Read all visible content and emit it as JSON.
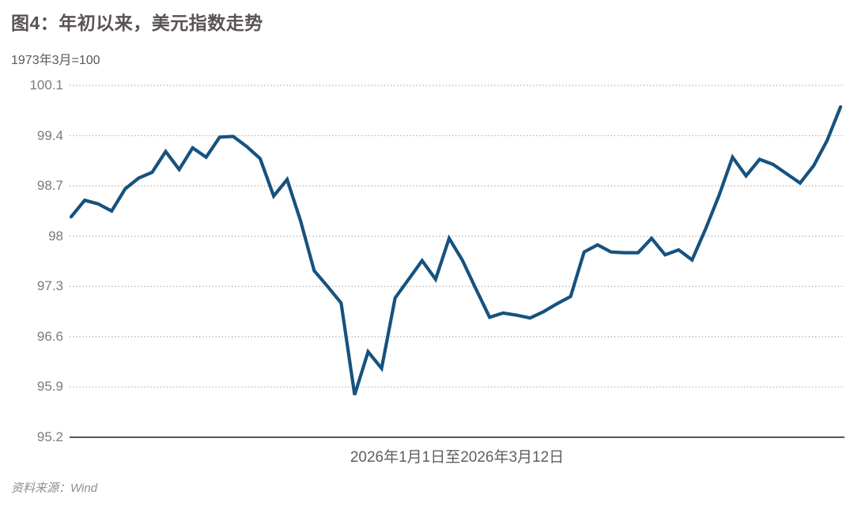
{
  "title": "图4：年初以来，美元指数走势",
  "unit_note": "1973年3月=100",
  "x_axis_label": "2026年1月1日至2026年3月12日",
  "source": "资料来源：Wind",
  "colors": {
    "line": "#17527e",
    "grid_dotted": "#a8a8a8",
    "axis_line": "#55565a",
    "title_text": "#5a5353",
    "tick_text": "#7b7b7b",
    "background": "#ffffff"
  },
  "chart_data": {
    "type": "line",
    "title": "图4：年初以来，美元指数走势",
    "subtitle_unit": "1973年3月=100",
    "xlabel": "2026年1月1日至2026年3月12日",
    "x_range_text": "2026年1月1日至2026年3月12日",
    "ylabel": "",
    "ylim": [
      95.2,
      100.1
    ],
    "yticks": [
      100.1,
      99.4,
      98.7,
      98,
      97.3,
      96.6,
      95.9,
      95.2
    ],
    "ytick_labels": [
      "100.1",
      "99.4",
      "98.7",
      "98",
      "97.3",
      "96.6",
      "95.9",
      "95.2"
    ],
    "grid": "horizontal-dotted",
    "legend": "none",
    "series": [
      {
        "name": "美元指数",
        "values": [
          98.27,
          98.5,
          98.45,
          98.35,
          98.66,
          98.81,
          98.89,
          99.18,
          98.93,
          99.23,
          99.1,
          99.38,
          99.39,
          99.25,
          99.08,
          98.56,
          98.79,
          98.21,
          97.52,
          97.3,
          97.07,
          95.79,
          96.39,
          96.16,
          97.14,
          97.4,
          97.66,
          97.4,
          97.97,
          97.66,
          97.26,
          96.87,
          96.93,
          96.9,
          96.86,
          96.95,
          97.06,
          97.16,
          97.78,
          97.88,
          97.78,
          97.77,
          97.77,
          97.97,
          97.74,
          97.81,
          97.67,
          98.1,
          98.57,
          99.1,
          98.84,
          99.07,
          99.0,
          98.87,
          98.74,
          98.98,
          99.33,
          99.8
        ]
      }
    ]
  }
}
